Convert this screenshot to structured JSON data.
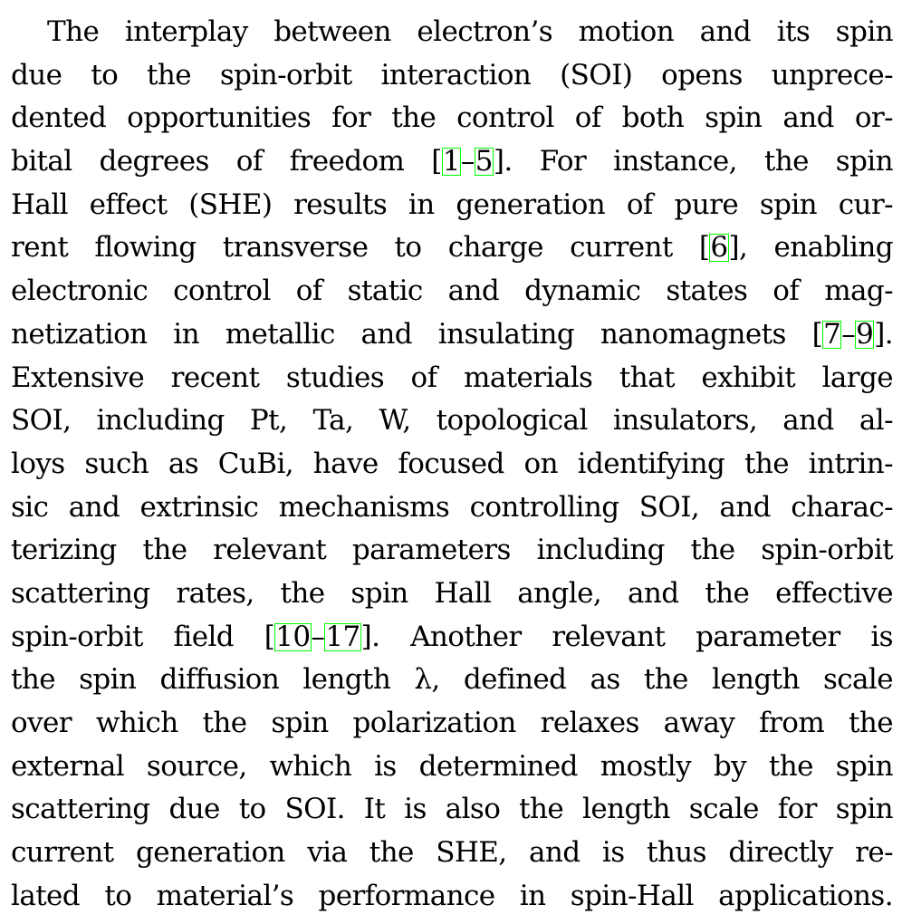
{
  "paragraph": {
    "lines": [
      {
        "segments": [
          {
            "text": "The interplay between electron’s motion and its spin"
          }
        ]
      },
      {
        "segments": [
          {
            "text": "due to the spin-orbit interaction (SOI) opens unprece-"
          }
        ]
      },
      {
        "segments": [
          {
            "text": "dented opportunities for the control of both spin and or-"
          }
        ]
      },
      {
        "segments": [
          {
            "text": "bital degrees of freedom ["
          },
          {
            "text": "1",
            "cite": true
          },
          {
            "text": "–"
          },
          {
            "text": "5",
            "cite": true
          },
          {
            "text": "]. For instance, the spin"
          }
        ]
      },
      {
        "segments": [
          {
            "text": "Hall effect (SHE) results in generation of pure spin cur-"
          }
        ]
      },
      {
        "segments": [
          {
            "text": "rent flowing transverse to charge current ["
          },
          {
            "text": "6",
            "cite": true
          },
          {
            "text": "], enabling"
          }
        ]
      },
      {
        "segments": [
          {
            "text": "electronic control of static and dynamic states of mag-"
          }
        ]
      },
      {
        "segments": [
          {
            "text": "netization in metallic and insulating nanomagnets ["
          },
          {
            "text": "7",
            "cite": true
          },
          {
            "text": "–"
          },
          {
            "text": "9",
            "cite": true
          },
          {
            "text": "]."
          }
        ]
      },
      {
        "segments": [
          {
            "text": "Extensive recent studies of materials that exhibit large"
          }
        ]
      },
      {
        "segments": [
          {
            "text": "SOI, including Pt, Ta, W, topological insulators, and al-"
          }
        ]
      },
      {
        "segments": [
          {
            "text": "loys such as CuBi, have focused on identifying the intrin-"
          }
        ]
      },
      {
        "segments": [
          {
            "text": "sic and extrinsic mechanisms controlling SOI, and charac-"
          }
        ]
      },
      {
        "segments": [
          {
            "text": "terizing the relevant parameters including the spin-orbit"
          }
        ]
      },
      {
        "segments": [
          {
            "text": "scattering rates, the spin Hall angle, and the effective"
          }
        ]
      },
      {
        "segments": [
          {
            "text": "spin-orbit field ["
          },
          {
            "text": "10",
            "cite": true
          },
          {
            "text": "–"
          },
          {
            "text": "17",
            "cite": true
          },
          {
            "text": "]. Another relevant parameter is"
          }
        ]
      },
      {
        "segments": [
          {
            "text": "the spin diffusion length λ, defined as the length scale"
          }
        ]
      },
      {
        "segments": [
          {
            "text": "over which the spin polarization relaxes away from the"
          }
        ]
      },
      {
        "segments": [
          {
            "text": "external source, which is determined mostly by the spin"
          }
        ]
      },
      {
        "segments": [
          {
            "text": "scattering due to SOI. It is also the length scale for spin"
          }
        ]
      },
      {
        "segments": [
          {
            "text": "current generation via the SHE, and is thus directly re-"
          }
        ]
      },
      {
        "segments": [
          {
            "text": "lated to material’s performance in spin-Hall applications."
          }
        ]
      }
    ]
  }
}
